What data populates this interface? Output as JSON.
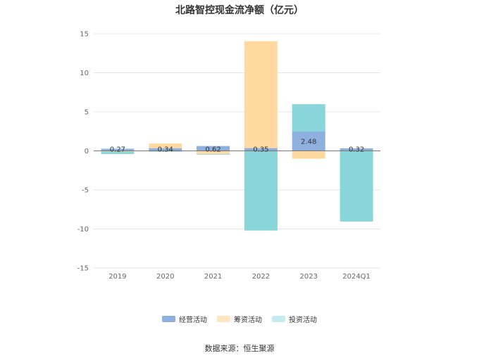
{
  "chart_data": {
    "type": "bar",
    "stacked": true,
    "title": "北路智控现金流净额（亿元）",
    "source": "数据来源：恒生聚源",
    "categories": [
      "2019",
      "2020",
      "2021",
      "2022",
      "2023",
      "2024Q1"
    ],
    "ylim": [
      -15,
      15
    ],
    "yticks": [
      15,
      10,
      5,
      0,
      -5,
      -10,
      -15
    ],
    "grid": true,
    "legend_position": "bottom",
    "series": [
      {
        "name": "经营活动",
        "color": "#8eb0df",
        "values": [
          0.27,
          0.34,
          0.62,
          0.35,
          2.48,
          0.32
        ]
      },
      {
        "name": "筹资活动",
        "color": "#ffd9a0",
        "values": [
          -0.1,
          0.6,
          -0.4,
          13.7,
          -1.0,
          -0.05
        ]
      },
      {
        "name": "投资活动",
        "color": "#88d6d9",
        "values": [
          -0.3,
          -0.1,
          -0.05,
          -10.2,
          3.5,
          -9.0
        ]
      }
    ],
    "data_labels": [
      "0.27",
      "0.34",
      "0.62",
      "0.35",
      "2.48",
      "0.32"
    ]
  }
}
